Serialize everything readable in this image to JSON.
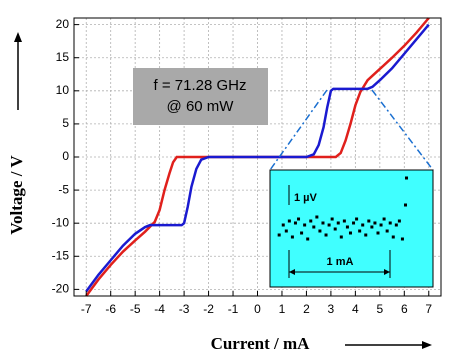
{
  "chart_data": [
    {
      "type": "line",
      "xlabel": "Current / mA",
      "ylabel": "Voltage / V",
      "annotation": [
        "f = 71.28 GHz",
        "@ 60 mW"
      ],
      "xlim": [
        -7.5,
        7.5
      ],
      "ylim": [
        -21,
        21
      ],
      "xticks": [
        -7,
        -6,
        -5,
        -4,
        -3,
        -2,
        -1,
        0,
        1,
        2,
        3,
        4,
        5,
        6,
        7
      ],
      "yticks": [
        -20,
        -15,
        -10,
        -5,
        0,
        5,
        10,
        15,
        20
      ],
      "grid": true,
      "series": [
        {
          "color": "#e0201c",
          "x": [
            -7,
            -6.5,
            -6,
            -5.5,
            -5,
            -4.6,
            -4.2,
            -4,
            -3.8,
            -3.6,
            -3.45,
            -3.3,
            0,
            3.2,
            3.4,
            3.6,
            3.8,
            4,
            4.2,
            4.5,
            5,
            5.5,
            6,
            6.5,
            7
          ],
          "values": [
            -21,
            -18.5,
            -16.3,
            -14.3,
            -12.6,
            -11.3,
            -9.8,
            -8,
            -5,
            -2.5,
            -0.8,
            0,
            0,
            0,
            0.6,
            2.5,
            5,
            7.8,
            9.8,
            11.6,
            13.3,
            15,
            16.8,
            18.8,
            21
          ]
        },
        {
          "color": "#1a1ad0",
          "x": [
            -7,
            -6.5,
            -6,
            -5.5,
            -5,
            -4.6,
            -4.4,
            -3.1,
            -3,
            -2.85,
            -2.7,
            -2.5,
            -2.3,
            -2,
            0,
            2,
            2.3,
            2.5,
            2.7,
            2.85,
            3,
            3.1,
            4.5,
            4.7,
            5,
            5.5,
            6,
            6.5,
            7
          ],
          "values": [
            -20.3,
            -17.8,
            -15.6,
            -13.4,
            -11.6,
            -10.6,
            -10.3,
            -10.3,
            -10,
            -7.5,
            -4.5,
            -1.8,
            -0.4,
            0,
            0,
            0,
            0.4,
            1.8,
            4.5,
            7.5,
            10,
            10.3,
            10.3,
            10.6,
            11.6,
            13.4,
            15.6,
            17.8,
            20
          ]
        }
      ]
    },
    {
      "type": "scatter",
      "annotations": [
        "1 µV",
        "1 mA"
      ],
      "xlim": [
        0,
        1.6
      ],
      "ylim": [
        -3,
        2.85
      ],
      "color": "#000000",
      "x": [
        0.09,
        0.13,
        0.16,
        0.19,
        0.22,
        0.25,
        0.28,
        0.31,
        0.34,
        0.37,
        0.4,
        0.43,
        0.46,
        0.49,
        0.52,
        0.55,
        0.58,
        0.61,
        0.64,
        0.67,
        0.7,
        0.73,
        0.76,
        0.79,
        0.82,
        0.85,
        0.88,
        0.91,
        0.94,
        0.97,
        1.0,
        1.03,
        1.06,
        1.09,
        1.12,
        1.15,
        1.18,
        1.21,
        1.24,
        1.27,
        1.3,
        1.33,
        1.34
      ],
      "values": [
        -0.4,
        0.1,
        -0.2,
        0.3,
        -0.5,
        0.2,
        0.4,
        -0.3,
        0.1,
        -0.6,
        0.3,
        0,
        0.5,
        -0.2,
        0.2,
        -0.4,
        0.1,
        0.4,
        -0.1,
        0.2,
        -0.5,
        0.3,
        0,
        -0.3,
        0.2,
        0.4,
        -0.2,
        0.1,
        -0.4,
        0.3,
        0,
        0.2,
        -0.3,
        0.1,
        0.4,
        -0.2,
        0.2,
        -0.5,
        0.1,
        0.3,
        -0.6,
        1.1,
        2.45
      ]
    }
  ]
}
